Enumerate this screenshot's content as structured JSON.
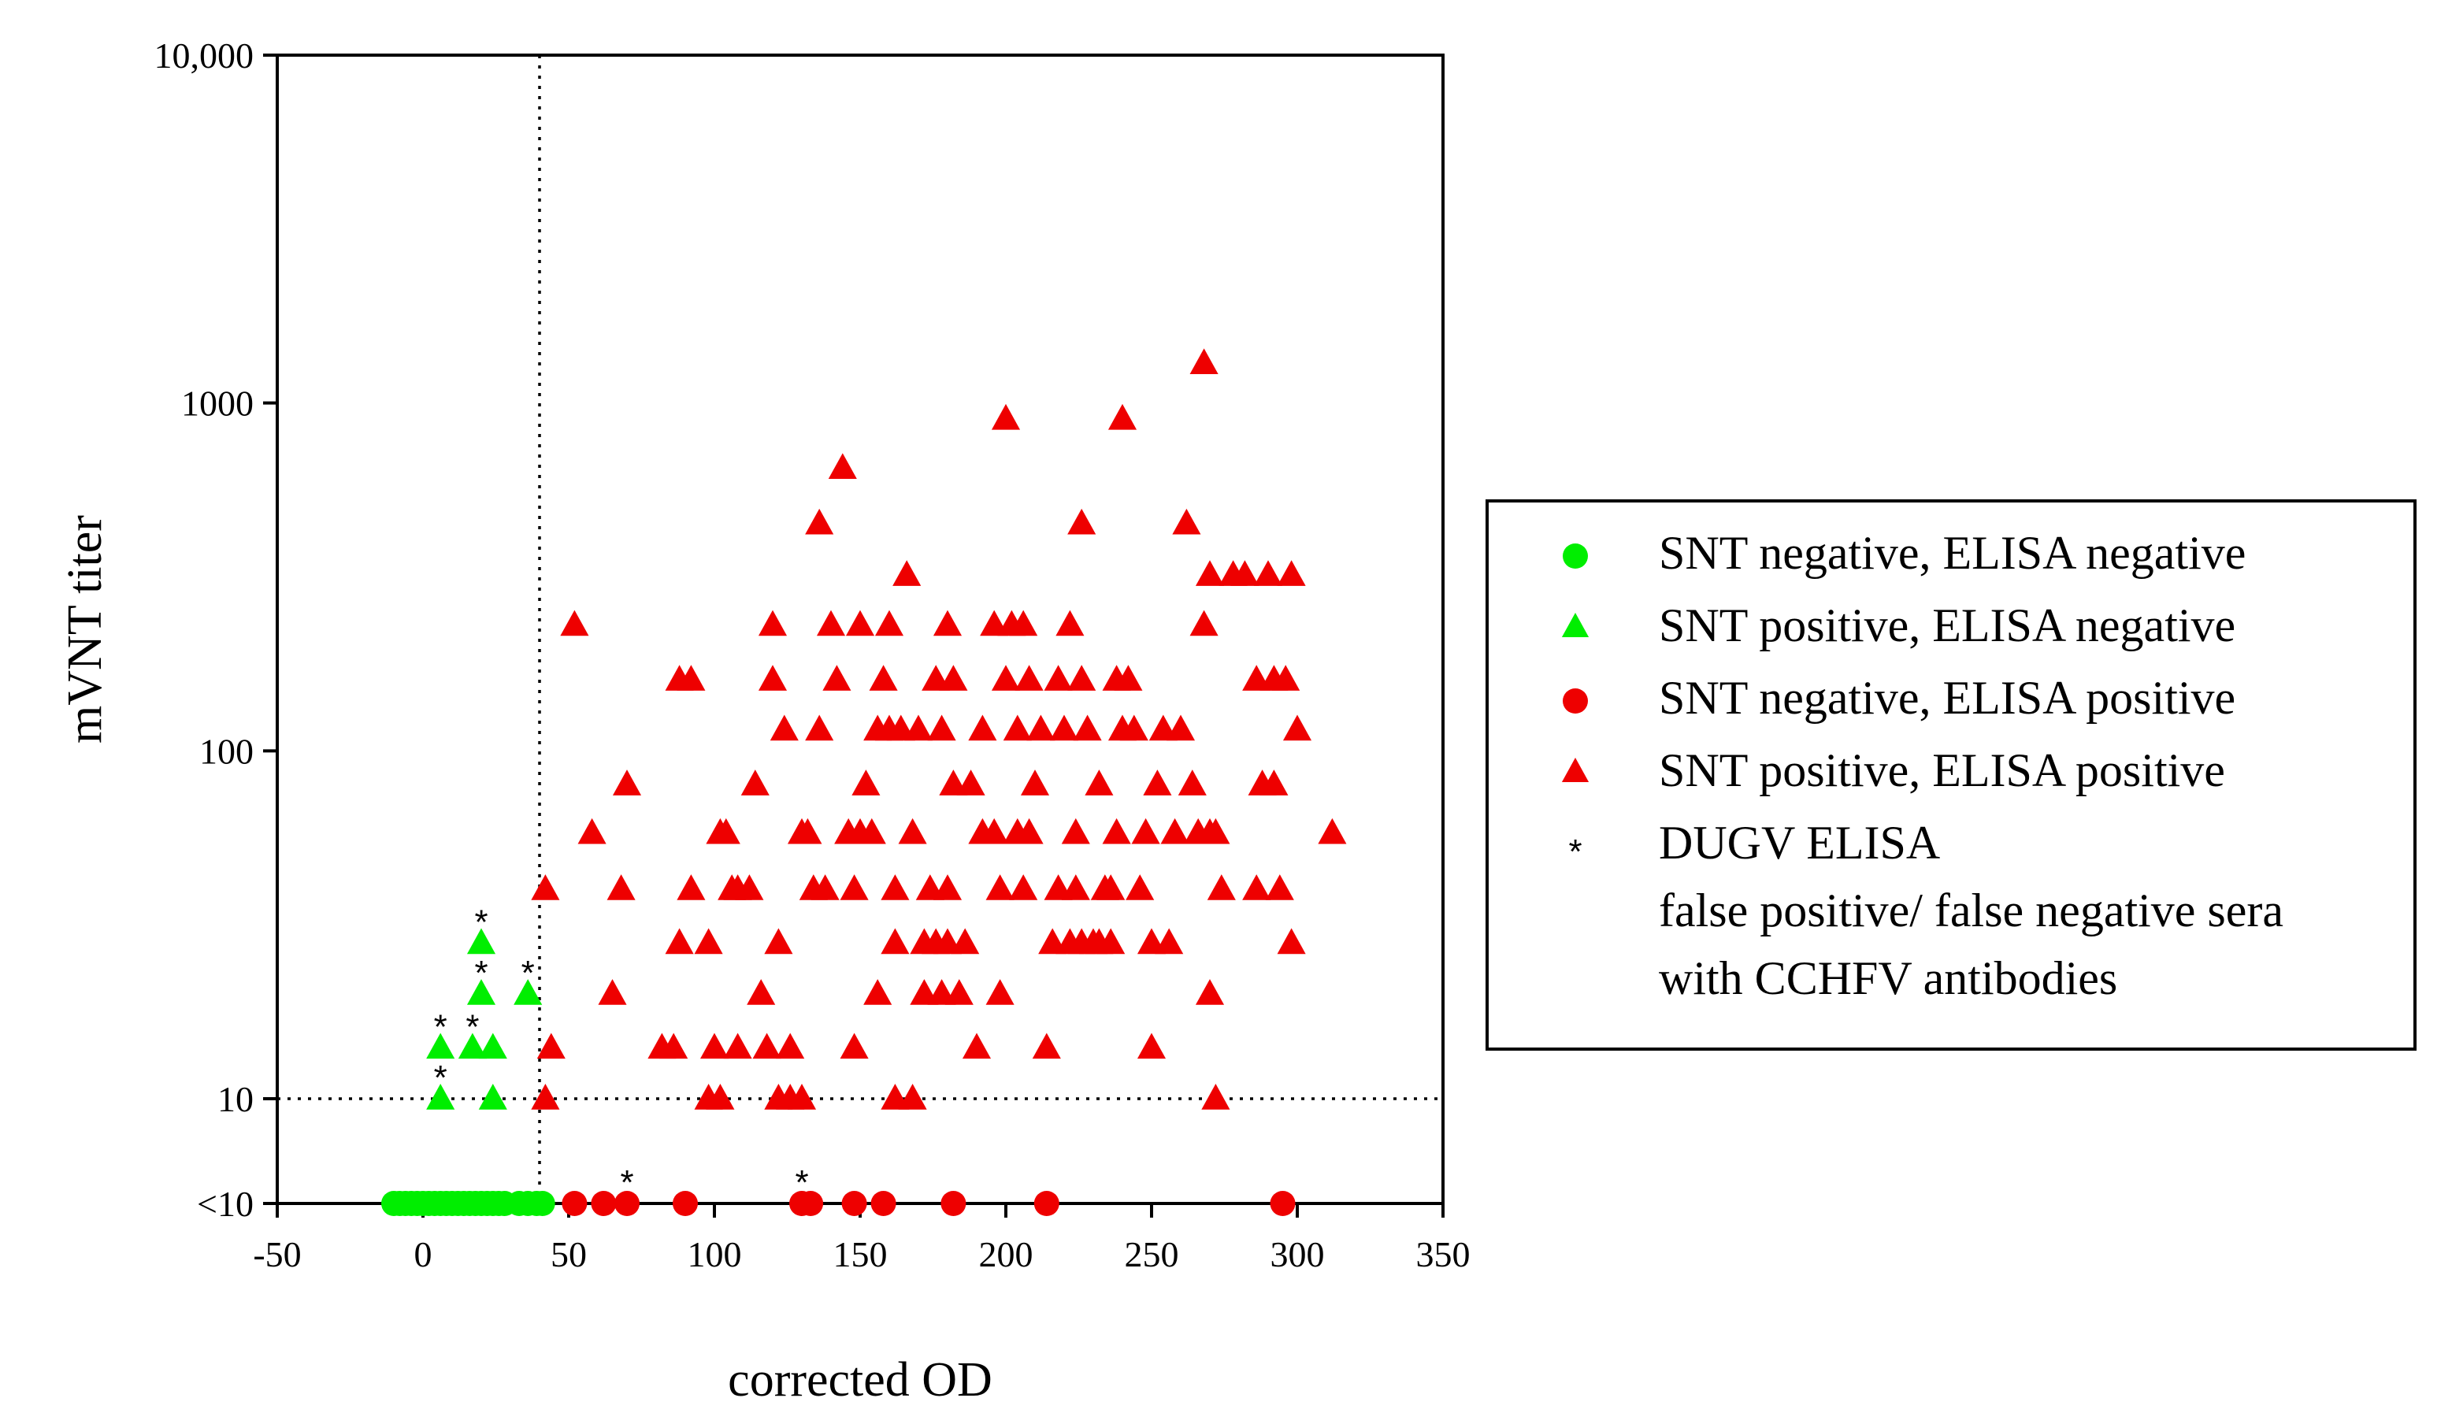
{
  "chart_data": {
    "type": "scatter",
    "title": "",
    "xlabel": "corrected OD",
    "ylabel": "mVNT titer",
    "xlim": [
      -50,
      350
    ],
    "x_ticks": [
      -50,
      0,
      50,
      100,
      150,
      200,
      250,
      300,
      350
    ],
    "y_scale": "log",
    "ylim": [
      5,
      10000
    ],
    "y_ticks": [
      {
        "value": 5,
        "label": "<10"
      },
      {
        "value": 10,
        "label": "10"
      },
      {
        "value": 100,
        "label": "100"
      },
      {
        "value": 1000,
        "label": "1000"
      },
      {
        "value": 10000,
        "label": "10,000"
      }
    ],
    "cutoff_x": 40,
    "cutoff_y": 10,
    "legend": {
      "position": "right",
      "entries": [
        {
          "marker": "circle",
          "color": "#00ee00",
          "label": "SNT negative, ELISA negative"
        },
        {
          "marker": "triangle",
          "color": "#00ee00",
          "label": "SNT positive, ELISA negative"
        },
        {
          "marker": "circle",
          "color": "#ee0000",
          "label": "SNT negative, ELISA positive"
        },
        {
          "marker": "triangle",
          "color": "#ee0000",
          "label": "SNT positive, ELISA positive"
        },
        {
          "marker": "star",
          "color": "#000000",
          "label": "DUGV ELISA",
          "extra_lines": [
            "false positive/ false negative sera",
            "with CCHFV antibodies"
          ]
        }
      ]
    },
    "series": [
      {
        "name": "SNT negative, ELISA negative",
        "marker": "circle",
        "color": "#00ee00",
        "points": [
          [
            -10,
            5
          ],
          [
            -8,
            5
          ],
          [
            -6,
            5
          ],
          [
            -4,
            5
          ],
          [
            -2,
            5
          ],
          [
            0,
            5
          ],
          [
            2,
            5
          ],
          [
            4,
            5
          ],
          [
            6,
            5
          ],
          [
            8,
            5
          ],
          [
            10,
            5
          ],
          [
            12,
            5
          ],
          [
            14,
            5
          ],
          [
            16,
            5
          ],
          [
            18,
            5
          ],
          [
            20,
            5
          ],
          [
            22,
            5
          ],
          [
            24,
            5
          ],
          [
            26,
            5
          ],
          [
            28,
            5
          ],
          [
            33,
            5
          ],
          [
            36,
            5
          ],
          [
            39,
            5
          ],
          [
            41,
            5
          ]
        ]
      },
      {
        "name": "SNT positive, ELISA negative",
        "marker": "triangle",
        "color": "#00ee00",
        "points": [
          [
            6,
            10
          ],
          [
            6,
            14
          ],
          [
            17,
            14
          ],
          [
            24,
            14
          ],
          [
            20,
            20
          ],
          [
            36,
            20
          ],
          [
            20,
            28
          ],
          [
            24,
            10
          ]
        ]
      },
      {
        "name": "SNT negative, ELISA positive",
        "marker": "circle",
        "color": "#ee0000",
        "points": [
          [
            52,
            5
          ],
          [
            62,
            5
          ],
          [
            70,
            5
          ],
          [
            90,
            5
          ],
          [
            130,
            5
          ],
          [
            133,
            5
          ],
          [
            148,
            5
          ],
          [
            158,
            5
          ],
          [
            182,
            5
          ],
          [
            214,
            5
          ],
          [
            295,
            5
          ]
        ]
      },
      {
        "name": "SNT positive, ELISA positive",
        "marker": "triangle",
        "color": "#ee0000",
        "points": [
          [
            52,
            230
          ],
          [
            58,
            58
          ],
          [
            70,
            80
          ],
          [
            68,
            40
          ],
          [
            65,
            20
          ],
          [
            42,
            40
          ],
          [
            44,
            14
          ],
          [
            42,
            10
          ],
          [
            82,
            14
          ],
          [
            86,
            14
          ],
          [
            88,
            28
          ],
          [
            88,
            160
          ],
          [
            92,
            160
          ],
          [
            92,
            40
          ],
          [
            98,
            28
          ],
          [
            98,
            10
          ],
          [
            102,
            10
          ],
          [
            100,
            14
          ],
          [
            102,
            58
          ],
          [
            104,
            58
          ],
          [
            106,
            40
          ],
          [
            108,
            14
          ],
          [
            108,
            40
          ],
          [
            112,
            40
          ],
          [
            114,
            80
          ],
          [
            116,
            20
          ],
          [
            118,
            14
          ],
          [
            120,
            230
          ],
          [
            120,
            160
          ],
          [
            122,
            28
          ],
          [
            122,
            10
          ],
          [
            124,
            115
          ],
          [
            126,
            10
          ],
          [
            126,
            14
          ],
          [
            130,
            10
          ],
          [
            130,
            58
          ],
          [
            132,
            58
          ],
          [
            134,
            40
          ],
          [
            136,
            115
          ],
          [
            136,
            450
          ],
          [
            138,
            40
          ],
          [
            140,
            230
          ],
          [
            142,
            160
          ],
          [
            144,
            650
          ],
          [
            146,
            58
          ],
          [
            148,
            14
          ],
          [
            148,
            40
          ],
          [
            150,
            58
          ],
          [
            150,
            230
          ],
          [
            152,
            80
          ],
          [
            154,
            58
          ],
          [
            156,
            20
          ],
          [
            156,
            115
          ],
          [
            158,
            160
          ],
          [
            160,
            115
          ],
          [
            160,
            230
          ],
          [
            162,
            10
          ],
          [
            162,
            28
          ],
          [
            162,
            40
          ],
          [
            164,
            115
          ],
          [
            166,
            320
          ],
          [
            168,
            10
          ],
          [
            168,
            58
          ],
          [
            170,
            115
          ],
          [
            172,
            20
          ],
          [
            172,
            28
          ],
          [
            174,
            40
          ],
          [
            176,
            28
          ],
          [
            176,
            160
          ],
          [
            178,
            20
          ],
          [
            178,
            115
          ],
          [
            180,
            40
          ],
          [
            180,
            230
          ],
          [
            180,
            28
          ],
          [
            182,
            80
          ],
          [
            182,
            160
          ],
          [
            184,
            20
          ],
          [
            186,
            28
          ],
          [
            188,
            80
          ],
          [
            190,
            14
          ],
          [
            192,
            58
          ],
          [
            192,
            115
          ],
          [
            196,
            58
          ],
          [
            196,
            230
          ],
          [
            198,
            40
          ],
          [
            198,
            20
          ],
          [
            200,
            900
          ],
          [
            200,
            160
          ],
          [
            202,
            230
          ],
          [
            204,
            58
          ],
          [
            204,
            115
          ],
          [
            206,
            40
          ],
          [
            206,
            230
          ],
          [
            208,
            58
          ],
          [
            208,
            160
          ],
          [
            210,
            80
          ],
          [
            212,
            115
          ],
          [
            214,
            14
          ],
          [
            216,
            28
          ],
          [
            218,
            160
          ],
          [
            218,
            40
          ],
          [
            220,
            115
          ],
          [
            222,
            28
          ],
          [
            222,
            230
          ],
          [
            224,
            58
          ],
          [
            224,
            40
          ],
          [
            226,
            450
          ],
          [
            226,
            160
          ],
          [
            226,
            28
          ],
          [
            228,
            115
          ],
          [
            230,
            28
          ],
          [
            232,
            28
          ],
          [
            232,
            80
          ],
          [
            234,
            40
          ],
          [
            236,
            40
          ],
          [
            236,
            28
          ],
          [
            238,
            160
          ],
          [
            238,
            58
          ],
          [
            240,
            900
          ],
          [
            240,
            115
          ],
          [
            242,
            160
          ],
          [
            244,
            115
          ],
          [
            246,
            40
          ],
          [
            248,
            58
          ],
          [
            250,
            14
          ],
          [
            250,
            28
          ],
          [
            252,
            80
          ],
          [
            254,
            115
          ],
          [
            256,
            28
          ],
          [
            258,
            58
          ],
          [
            260,
            115
          ],
          [
            262,
            450
          ],
          [
            264,
            80
          ],
          [
            266,
            58
          ],
          [
            268,
            1300
          ],
          [
            268,
            230
          ],
          [
            270,
            20
          ],
          [
            270,
            320
          ],
          [
            270,
            58
          ],
          [
            272,
            10
          ],
          [
            272,
            58
          ],
          [
            274,
            40
          ],
          [
            278,
            320
          ],
          [
            282,
            320
          ],
          [
            286,
            160
          ],
          [
            286,
            40
          ],
          [
            288,
            80
          ],
          [
            290,
            320
          ],
          [
            292,
            160
          ],
          [
            292,
            80
          ],
          [
            294,
            40
          ],
          [
            296,
            160
          ],
          [
            298,
            320
          ],
          [
            298,
            28
          ],
          [
            300,
            115
          ],
          [
            312,
            58
          ]
        ]
      }
    ],
    "asterisk_points": [
      [
        20,
        28
      ],
      [
        20,
        20
      ],
      [
        36,
        20
      ],
      [
        6,
        14
      ],
      [
        17,
        14
      ],
      [
        6,
        10
      ],
      [
        70,
        5
      ],
      [
        130,
        5
      ]
    ]
  }
}
